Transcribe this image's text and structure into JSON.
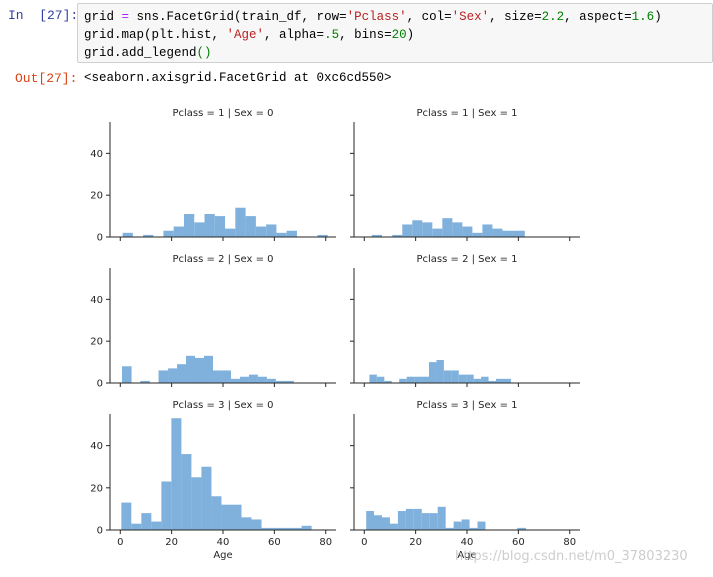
{
  "notebook": {
    "in_prompt": "In  [27]:",
    "out_prompt": "Out[27]:",
    "code_lines": [
      [
        [
          "grid ",
          ""
        ],
        [
          "=",
          "eq"
        ],
        [
          " sns.FacetGrid(train_df, row=",
          ""
        ],
        [
          "'Pclass'",
          "str"
        ],
        [
          ", col=",
          ""
        ],
        [
          "'Sex'",
          "str"
        ],
        [
          ", size=",
          ""
        ],
        [
          "2.2",
          "num"
        ],
        [
          ", aspect=",
          ""
        ],
        [
          "1.6",
          "num"
        ],
        [
          ")",
          ""
        ]
      ],
      [
        [
          "grid.map(plt.hist, ",
          ""
        ],
        [
          "'Age'",
          "str"
        ],
        [
          ", alpha=",
          ""
        ],
        [
          ".5",
          "num"
        ],
        [
          ", bins=",
          ""
        ],
        [
          "20",
          "num"
        ],
        [
          ")",
          ""
        ]
      ],
      [
        [
          "grid.add_legend",
          ""
        ],
        [
          "()",
          "par"
        ]
      ]
    ],
    "output_text": "<seaborn.axisgrid.FacetGrid at 0xc6cd550>"
  },
  "watermark": "https://blog.csdn.net/m0_37803230",
  "colors": {
    "bar": "#7fb1dc",
    "axis": "#262626"
  },
  "chart_data": {
    "type": "bar",
    "xlabel": "Age",
    "xlim": [
      -4,
      84
    ],
    "ylim": [
      0,
      55
    ],
    "xticks": [
      0,
      20,
      40,
      60,
      80
    ],
    "yticks": [
      0,
      20,
      40
    ],
    "panels": [
      {
        "row": 0,
        "col": 0,
        "title": "Pclass = 1 | Sex = 0",
        "bars": [
          [
            0.92,
            4.9,
            2
          ],
          [
            8.9,
            12.9,
            1
          ],
          [
            16.8,
            20.8,
            3
          ],
          [
            20.8,
            24.8,
            5
          ],
          [
            24.8,
            28.8,
            11
          ],
          [
            28.8,
            32.8,
            7
          ],
          [
            32.8,
            36.8,
            11
          ],
          [
            36.8,
            40.8,
            10
          ],
          [
            40.8,
            44.8,
            4
          ],
          [
            44.8,
            48.8,
            14
          ],
          [
            48.8,
            52.8,
            10
          ],
          [
            52.8,
            56.8,
            5
          ],
          [
            56.8,
            60.8,
            6
          ],
          [
            60.8,
            64.8,
            2
          ],
          [
            64.8,
            68.8,
            3
          ],
          [
            76.8,
            80.8,
            1
          ]
        ]
      },
      {
        "row": 0,
        "col": 1,
        "title": "Pclass = 1 | Sex = 1",
        "bars": [
          [
            2.9,
            6.9,
            1
          ],
          [
            10.9,
            14.8,
            1
          ],
          [
            14.8,
            18.7,
            6
          ],
          [
            18.7,
            22.6,
            8
          ],
          [
            22.6,
            26.5,
            7
          ],
          [
            26.5,
            30.4,
            4
          ],
          [
            30.4,
            34.3,
            9
          ],
          [
            34.3,
            38.2,
            7
          ],
          [
            38.2,
            42.1,
            5
          ],
          [
            42.1,
            46,
            2
          ],
          [
            46,
            49.9,
            6
          ],
          [
            49.9,
            53.8,
            4
          ],
          [
            53.8,
            57.7,
            3
          ],
          [
            57.7,
            62.5,
            3
          ]
        ]
      },
      {
        "row": 1,
        "col": 0,
        "title": "Pclass = 2 | Sex = 0",
        "bars": [
          [
            0.67,
            4.4,
            8
          ],
          [
            7.8,
            11.5,
            1
          ],
          [
            14.9,
            18.6,
            6
          ],
          [
            18.6,
            22.1,
            7
          ],
          [
            22.1,
            25.6,
            9
          ],
          [
            25.6,
            29.1,
            13
          ],
          [
            29.1,
            32.6,
            12
          ],
          [
            32.6,
            36.1,
            13
          ],
          [
            36.1,
            39.6,
            6
          ],
          [
            39.6,
            43.1,
            6
          ],
          [
            43.1,
            46.6,
            2
          ],
          [
            46.6,
            50.1,
            3
          ],
          [
            50.1,
            53.6,
            4
          ],
          [
            53.6,
            57.1,
            3
          ],
          [
            57.1,
            60.6,
            2
          ],
          [
            60.6,
            64.1,
            1
          ],
          [
            64.1,
            67.6,
            1
          ],
          [
            67.6,
            70.8,
            0
          ]
        ]
      },
      {
        "row": 1,
        "col": 1,
        "title": "Pclass = 2 | Sex = 1",
        "bars": [
          [
            2,
            4.9,
            4
          ],
          [
            4.9,
            7.8,
            3
          ],
          [
            7.8,
            10.7,
            1
          ],
          [
            13.6,
            16.5,
            2
          ],
          [
            16.5,
            19.4,
            3
          ],
          [
            19.4,
            22.3,
            3
          ],
          [
            22.3,
            25.2,
            3
          ],
          [
            25.2,
            28.1,
            10
          ],
          [
            28.1,
            31,
            11
          ],
          [
            31,
            33.9,
            6
          ],
          [
            33.9,
            36.8,
            6
          ],
          [
            36.8,
            39.7,
            4
          ],
          [
            39.7,
            42.6,
            4
          ],
          [
            42.6,
            45.5,
            2
          ],
          [
            45.5,
            48.4,
            3
          ],
          [
            48.4,
            51.3,
            1
          ],
          [
            51.3,
            54.2,
            2
          ],
          [
            54.2,
            57.1,
            2
          ]
        ]
      },
      {
        "row": 2,
        "col": 0,
        "title": "Pclass = 3 | Sex = 0",
        "bars": [
          [
            0.42,
            4.3,
            13
          ],
          [
            4.3,
            8.2,
            3
          ],
          [
            8.2,
            12.1,
            8
          ],
          [
            12.1,
            16,
            4
          ],
          [
            16,
            19.9,
            23
          ],
          [
            19.9,
            23.8,
            53
          ],
          [
            23.8,
            27.7,
            36
          ],
          [
            27.7,
            31.6,
            25
          ],
          [
            31.6,
            35.5,
            30
          ],
          [
            35.5,
            39.4,
            16
          ],
          [
            39.4,
            43.3,
            12
          ],
          [
            43.3,
            47.2,
            12
          ],
          [
            47.2,
            51.1,
            6
          ],
          [
            51.1,
            55,
            5
          ],
          [
            55,
            58.9,
            1
          ],
          [
            58.9,
            62.8,
            1
          ],
          [
            62.8,
            66.7,
            1
          ],
          [
            66.7,
            70.6,
            1
          ],
          [
            70.6,
            74,
            0
          ],
          [
            70.6,
            74.5,
            2
          ]
        ]
      },
      {
        "row": 2,
        "col": 1,
        "title": "Pclass = 3 | Sex = 1",
        "bars": [
          [
            0.75,
            3.8,
            9
          ],
          [
            3.8,
            6.9,
            7
          ],
          [
            6.9,
            10,
            6
          ],
          [
            10,
            13.1,
            3
          ],
          [
            13.1,
            16.2,
            9
          ],
          [
            16.2,
            19.3,
            10
          ],
          [
            19.3,
            22.4,
            10
          ],
          [
            22.4,
            25.5,
            8
          ],
          [
            25.5,
            28.6,
            8
          ],
          [
            28.6,
            31.7,
            11
          ],
          [
            31.7,
            34.8,
            1
          ],
          [
            34.8,
            37.9,
            4
          ],
          [
            37.9,
            41,
            5
          ],
          [
            41,
            44.1,
            1
          ],
          [
            44.1,
            47.2,
            4
          ],
          [
            59.6,
            63,
            1
          ]
        ]
      }
    ]
  }
}
